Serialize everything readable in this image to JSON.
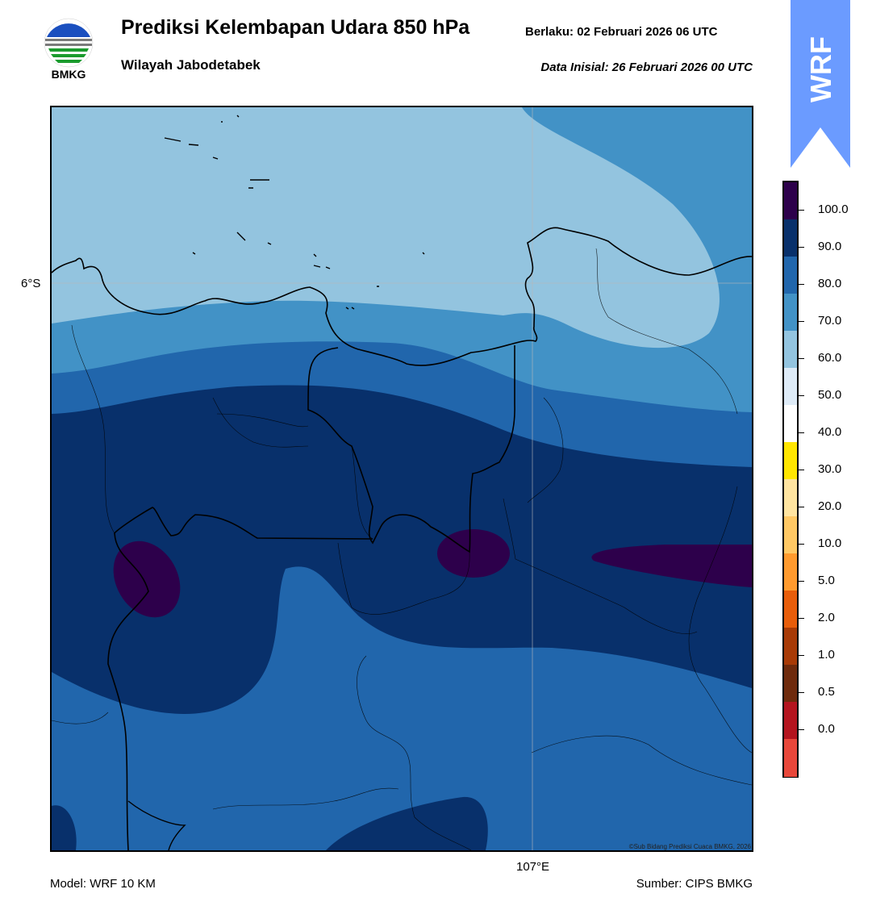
{
  "header": {
    "title": "Prediksi Kelembapan Udara 850 hPa",
    "valid_label": "Berlaku:  02 Februari 2026 06 UTC",
    "region": "Wilayah Jabodetabek",
    "init_label": "Data Inisial:  26 Februari 2026 00 UTC"
  },
  "logo": {
    "text": "BMKG",
    "icon": "bmkg-logo-icon"
  },
  "badge": {
    "text": "WRF",
    "color": "#6b9bff"
  },
  "map": {
    "lat_label": "6°S",
    "lon_label": "107°E",
    "copyright": "©Sub Bidang Prediksi Cuaca BMKG, 2026",
    "colors": {
      "c60_70": "#93c4df",
      "c70_80": "#4292c6",
      "c80_90": "#2166ac",
      "c90_100": "#08306b",
      "c100": "#2d004b"
    }
  },
  "colorbar": {
    "labels": [
      "100.0",
      "90.0",
      "80.0",
      "70.0",
      "60.0",
      "50.0",
      "40.0",
      "30.0",
      "20.0",
      "10.0",
      "5.0",
      "2.0",
      "1.0",
      "0.5",
      "0.0"
    ],
    "colors": [
      "#2d004b",
      "#08306b",
      "#2166ac",
      "#4292c6",
      "#93c4df",
      "#deebf7",
      "#ffffff",
      "#ffe600",
      "#ffe4a0",
      "#ffc864",
      "#ff9a2e",
      "#e85d0a",
      "#a83a06",
      "#6e2a0c",
      "#b4141e",
      "#e8473a"
    ]
  },
  "footer": {
    "model": "Model: WRF 10 KM",
    "source": "Sumber: CIPS BMKG"
  }
}
